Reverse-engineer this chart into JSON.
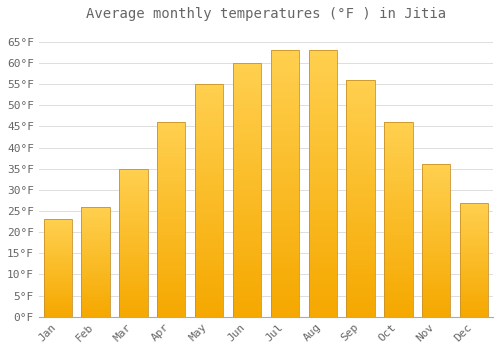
{
  "title": "Average monthly temperatures (°F ) in Jitia",
  "months": [
    "Jan",
    "Feb",
    "Mar",
    "Apr",
    "May",
    "Jun",
    "Jul",
    "Aug",
    "Sep",
    "Oct",
    "Nov",
    "Dec"
  ],
  "values": [
    23,
    26,
    35,
    46,
    55,
    60,
    63,
    63,
    56,
    46,
    36,
    27
  ],
  "bar_color_bottom": "#F5A800",
  "bar_color_top": "#FFD050",
  "bar_edge_color": "#C8922A",
  "background_color": "#FFFFFF",
  "grid_color": "#DDDDDD",
  "text_color": "#666666",
  "ylim": [
    0,
    68
  ],
  "yticks": [
    0,
    5,
    10,
    15,
    20,
    25,
    30,
    35,
    40,
    45,
    50,
    55,
    60,
    65
  ],
  "title_fontsize": 10,
  "tick_fontsize": 8,
  "font_family": "monospace",
  "bar_width": 0.75
}
